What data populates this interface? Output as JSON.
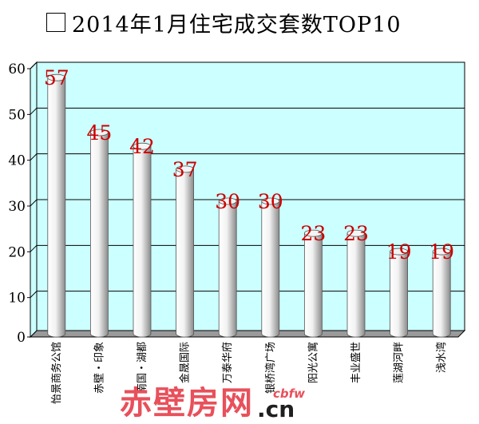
{
  "title": "2014年1月住宅成交套数TOP10",
  "watermark": {
    "brand": "赤壁房网",
    "sub": "cbfw",
    "domain": ".cn"
  },
  "colors": {
    "plot_bg": "#ccffff",
    "value_label": "#cc0000",
    "bar_light": "#ffffff",
    "bar_dark": "#8a8a8a"
  },
  "chart_data": {
    "type": "bar",
    "categories": [
      "怡景商务公馆",
      "赤壁・印象",
      "南国・湖都",
      "金晟国际",
      "万泰华府",
      "银桥湾广场",
      "阳光公寓",
      "丰业盛世",
      "莲湖河畔",
      "浅水湾"
    ],
    "values": [
      57,
      45,
      42,
      37,
      30,
      30,
      23,
      23,
      19,
      19
    ],
    "ylim": [
      0,
      60
    ],
    "yticks": [
      "0",
      "10",
      "20",
      "30",
      "40",
      "50",
      "60"
    ],
    "grid": true,
    "legend": "none"
  }
}
